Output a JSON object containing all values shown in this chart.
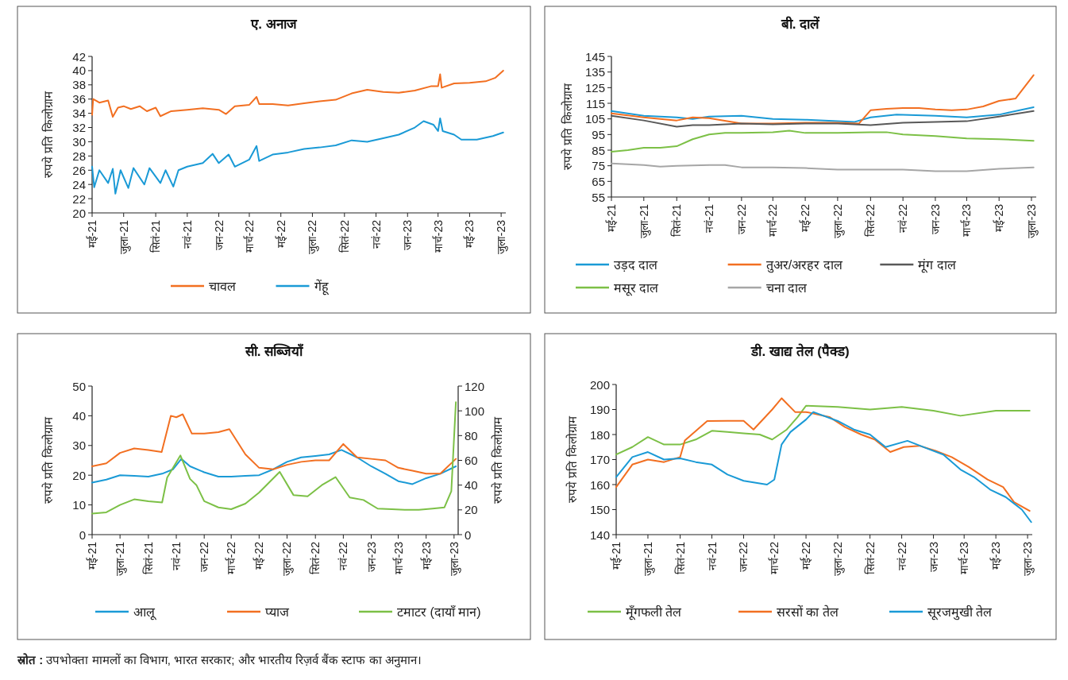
{
  "chart_data": [
    {
      "type": "line",
      "title": "ए. अनाज",
      "ylabel": "रुपये प्रति किलोग्राम",
      "xlim": [
        "2021-05-01",
        "2023-07-10"
      ],
      "ylim": [
        20,
        42
      ],
      "yticks": [
        20,
        22,
        24,
        26,
        28,
        30,
        32,
        34,
        36,
        38,
        40,
        42
      ],
      "xticks": [
        {
          "value": "2021-05-01",
          "label": "मई-21"
        },
        {
          "value": "2021-07-01",
          "label": "जुला-21"
        },
        {
          "value": "2021-09-01",
          "label": "सितं-21"
        },
        {
          "value": "2021-11-01",
          "label": "नवं-21"
        },
        {
          "value": "2022-01-01",
          "label": "जन-22"
        },
        {
          "value": "2022-03-01",
          "label": "मार्च-22"
        },
        {
          "value": "2022-05-01",
          "label": "मई-22"
        },
        {
          "value": "2022-07-01",
          "label": "जुला-22"
        },
        {
          "value": "2022-09-01",
          "label": "सितं-22"
        },
        {
          "value": "2022-11-01",
          "label": "नवं-22"
        },
        {
          "value": "2023-01-01",
          "label": "जन-23"
        },
        {
          "value": "2023-03-01",
          "label": "मार्च-23"
        },
        {
          "value": "2023-05-01",
          "label": "मई-23"
        },
        {
          "value": "2023-07-01",
          "label": "जुला-23"
        }
      ],
      "legend": "bottom",
      "annotations": [
        "स्रोत : उपभोक्ता मामलों का विभाग, भारत सरकार; और भारतीय रिज़र्व बैंक स्टाफ का अनुमान।"
      ],
      "series": [
        {
          "name": "चावल",
          "color": "#f26f21",
          "x": [
            "2021-05-01",
            "2021-05-03",
            "2021-05-15",
            "2021-06-01",
            "2021-06-10",
            "2021-06-20",
            "2021-07-01",
            "2021-07-15",
            "2021-08-01",
            "2021-08-15",
            "2021-09-01",
            "2021-09-10",
            "2021-10-01",
            "2021-11-01",
            "2021-12-01",
            "2022-01-01",
            "2022-01-15",
            "2022-02-01",
            "2022-03-01",
            "2022-03-15",
            "2022-03-20",
            "2022-04-15",
            "2022-05-15",
            "2022-06-15",
            "2022-07-15",
            "2022-08-15",
            "2022-09-15",
            "2022-10-15",
            "2022-11-15",
            "2022-12-15",
            "2023-01-15",
            "2023-02-15",
            "2023-03-01",
            "2023-03-05",
            "2023-03-08",
            "2023-04-01",
            "2023-05-01",
            "2023-06-01",
            "2023-06-20",
            "2023-07-05"
          ],
          "values": [
            33.8,
            36,
            35.5,
            35.8,
            33.5,
            34.8,
            35,
            34.6,
            35,
            34.3,
            34.8,
            33.6,
            34.3,
            34.5,
            34.7,
            34.5,
            33.9,
            35,
            35.2,
            36.3,
            35.3,
            35.3,
            35.1,
            35.4,
            35.7,
            35.9,
            36.8,
            37.3,
            37,
            36.9,
            37.2,
            37.8,
            37.8,
            39.5,
            37.6,
            38.2,
            38.3,
            38.5,
            39,
            40
          ]
        },
        {
          "name": "गेंहू",
          "color": "#1a9ad6",
          "x": [
            "2021-05-01",
            "2021-05-05",
            "2021-05-15",
            "2021-06-01",
            "2021-06-10",
            "2021-06-15",
            "2021-06-25",
            "2021-07-10",
            "2021-07-20",
            "2021-08-10",
            "2021-08-20",
            "2021-09-10",
            "2021-09-20",
            "2021-10-05",
            "2021-10-15",
            "2021-11-01",
            "2021-12-01",
            "2021-12-20",
            "2022-01-01",
            "2022-01-20",
            "2022-02-01",
            "2022-03-01",
            "2022-03-15",
            "2022-03-20",
            "2022-04-15",
            "2022-05-15",
            "2022-06-15",
            "2022-07-15",
            "2022-08-15",
            "2022-09-15",
            "2022-10-15",
            "2022-11-15",
            "2022-12-15",
            "2023-01-15",
            "2023-02-01",
            "2023-02-20",
            "2023-03-01",
            "2023-03-05",
            "2023-03-10",
            "2023-04-01",
            "2023-04-15",
            "2023-05-15",
            "2023-06-15",
            "2023-07-05"
          ],
          "values": [
            26.5,
            23.6,
            26,
            24.2,
            26.2,
            22.7,
            26,
            23.5,
            26.3,
            24,
            26.3,
            24.2,
            26,
            23.7,
            26,
            26.5,
            27,
            28.3,
            27,
            28.2,
            26.5,
            27.5,
            29.4,
            27.3,
            28.2,
            28.5,
            29,
            29.2,
            29.5,
            30.2,
            30,
            30.5,
            31,
            32,
            32.9,
            32.4,
            31.5,
            33.3,
            31.5,
            31,
            30.3,
            30.3,
            30.8,
            31.3
          ]
        }
      ]
    },
    {
      "type": "line",
      "title": "बी. दालें",
      "ylabel": "रुपये प्रति किलोग्राम",
      "xlim": [
        "2021-05-01",
        "2023-07-10"
      ],
      "ylim": [
        55,
        145
      ],
      "yticks": [
        55,
        65,
        75,
        85,
        95,
        105,
        115,
        125,
        135,
        145
      ],
      "xticks": [
        {
          "value": "2021-05-01",
          "label": "मई-21"
        },
        {
          "value": "2021-07-01",
          "label": "जुला-21"
        },
        {
          "value": "2021-09-01",
          "label": "सितं-21"
        },
        {
          "value": "2021-11-01",
          "label": "नवं-21"
        },
        {
          "value": "2022-01-01",
          "label": "जन-22"
        },
        {
          "value": "2022-03-01",
          "label": "मार्च-22"
        },
        {
          "value": "2022-05-01",
          "label": "मई-22"
        },
        {
          "value": "2022-07-01",
          "label": "जुला-22"
        },
        {
          "value": "2022-09-01",
          "label": "सितं-22"
        },
        {
          "value": "2022-11-01",
          "label": "नवं-22"
        },
        {
          "value": "2023-01-01",
          "label": "जन-23"
        },
        {
          "value": "2023-03-01",
          "label": "मार्च-23"
        },
        {
          "value": "2023-05-01",
          "label": "मई-23"
        },
        {
          "value": "2023-07-01",
          "label": "जुला-23"
        }
      ],
      "legend": "bottom",
      "series": [
        {
          "name": "उड़द दाल",
          "color": "#1a9ad6",
          "x": [
            "2021-05-01",
            "2021-07-01",
            "2021-09-01",
            "2021-10-01",
            "2021-11-01",
            "2022-01-01",
            "2022-03-01",
            "2022-05-01",
            "2022-07-01",
            "2022-08-01",
            "2022-09-01",
            "2022-10-20",
            "2023-01-01",
            "2023-03-01",
            "2023-05-01",
            "2023-07-05"
          ],
          "values": [
            110,
            107,
            106,
            105,
            106.5,
            107,
            105,
            104.5,
            103.5,
            103,
            106,
            107.7,
            107,
            106,
            107.7,
            112.5
          ]
        },
        {
          "name": "तुअर/अरहर दाल",
          "color": "#f26f21",
          "x": [
            "2021-05-01",
            "2021-07-01",
            "2021-09-01",
            "2021-10-01",
            "2021-11-01",
            "2022-01-01",
            "2022-03-01",
            "2022-05-01",
            "2022-07-01",
            "2022-08-10",
            "2022-09-01",
            "2022-10-01",
            "2022-11-01",
            "2022-12-01",
            "2023-01-01",
            "2023-02-01",
            "2023-03-01",
            "2023-04-01",
            "2023-05-01",
            "2023-06-01",
            "2023-07-05"
          ],
          "values": [
            108.5,
            106,
            104,
            106,
            105.5,
            102,
            102,
            102.5,
            102.5,
            102,
            110.5,
            111.5,
            112,
            112,
            111,
            110.5,
            111,
            113,
            116.5,
            118,
            133
          ]
        },
        {
          "name": "मूंग दाल",
          "color": "#595959",
          "x": [
            "2021-05-01",
            "2021-07-01",
            "2021-09-01",
            "2021-10-01",
            "2021-11-01",
            "2022-01-01",
            "2022-03-01",
            "2022-05-01",
            "2022-07-01",
            "2022-09-01",
            "2022-11-01",
            "2023-01-01",
            "2023-03-01",
            "2023-05-01",
            "2023-07-05"
          ],
          "values": [
            107,
            104,
            100,
            101,
            101,
            102,
            101.5,
            102,
            102,
            101,
            102.5,
            103,
            103.5,
            106.5,
            110
          ]
        },
        {
          "name": "मसूर दाल",
          "color": "#7cc046",
          "x": [
            "2021-05-01",
            "2021-06-01",
            "2021-07-01",
            "2021-08-01",
            "2021-09-01",
            "2021-10-01",
            "2021-11-01",
            "2021-12-01",
            "2022-01-01",
            "2022-03-01",
            "2022-04-01",
            "2022-05-01",
            "2022-07-01",
            "2022-09-01",
            "2022-10-01",
            "2022-11-01",
            "2023-01-01",
            "2023-03-01",
            "2023-05-01",
            "2023-07-05"
          ],
          "values": [
            84,
            85,
            86.5,
            86.5,
            87.5,
            92,
            95,
            96,
            96,
            96.5,
            97.5,
            96,
            96,
            96.5,
            96.5,
            95,
            94,
            92.5,
            92,
            91
          ]
        },
        {
          "name": "चना दाल",
          "color": "#a6a6a6",
          "x": [
            "2021-05-01",
            "2021-07-01",
            "2021-08-01",
            "2021-09-01",
            "2021-11-01",
            "2021-12-01",
            "2022-01-01",
            "2022-03-01",
            "2022-05-01",
            "2022-07-01",
            "2022-09-01",
            "2022-11-01",
            "2023-01-01",
            "2023-03-01",
            "2023-05-01",
            "2023-07-05"
          ],
          "values": [
            76.5,
            75.5,
            74.5,
            75,
            75.5,
            75.5,
            74,
            74,
            73.5,
            72.5,
            72.5,
            72.5,
            71.5,
            71.5,
            73,
            74
          ]
        }
      ]
    },
    {
      "type": "line",
      "title": "सी. सब्जियाँ",
      "ylabel": "रुपये प्रति किलोग्राम",
      "y2label": "रुपये प्रति किलोग्राम",
      "xlim": [
        "2021-05-01",
        "2023-07-10"
      ],
      "ylim": [
        0,
        50
      ],
      "yticks": [
        0,
        10,
        20,
        30,
        40,
        50
      ],
      "y2lim": [
        0,
        120
      ],
      "y2ticks": [
        0,
        20,
        40,
        60,
        80,
        100,
        120
      ],
      "xticks": [
        {
          "value": "2021-05-01",
          "label": "मई-21"
        },
        {
          "value": "2021-07-01",
          "label": "जुला-21"
        },
        {
          "value": "2021-09-01",
          "label": "सितं-21"
        },
        {
          "value": "2021-11-01",
          "label": "नवं-21"
        },
        {
          "value": "2022-01-01",
          "label": "जन-22"
        },
        {
          "value": "2022-03-01",
          "label": "मार्च-22"
        },
        {
          "value": "2022-05-01",
          "label": "मई-22"
        },
        {
          "value": "2022-07-01",
          "label": "जुला-22"
        },
        {
          "value": "2022-09-01",
          "label": "सितं-22"
        },
        {
          "value": "2022-11-01",
          "label": "नवं-22"
        },
        {
          "value": "2023-01-01",
          "label": "जन-23"
        },
        {
          "value": "2023-03-01",
          "label": "मार्च-23"
        },
        {
          "value": "2023-05-01",
          "label": "मई-23"
        },
        {
          "value": "2023-07-01",
          "label": "जुला-23"
        }
      ],
      "legend": "bottom",
      "series": [
        {
          "name": "आलू",
          "color": "#1a9ad6",
          "x": [
            "2021-05-01",
            "2021-06-01",
            "2021-07-01",
            "2021-08-01",
            "2021-09-01",
            "2021-10-01",
            "2021-10-25",
            "2021-11-12",
            "2021-12-01",
            "2022-01-01",
            "2022-02-01",
            "2022-03-01",
            "2022-04-01",
            "2022-05-01",
            "2022-06-01",
            "2022-07-01",
            "2022-08-01",
            "2022-09-01",
            "2022-10-01",
            "2022-10-28",
            "2022-12-01",
            "2023-01-01",
            "2023-02-01",
            "2023-03-01",
            "2023-04-01",
            "2023-05-01",
            "2023-06-01",
            "2023-07-05"
          ],
          "values": [
            17.5,
            18.5,
            20,
            19.8,
            19.5,
            20.5,
            22,
            25.5,
            23,
            21,
            19.5,
            19.5,
            19.8,
            20,
            22,
            24.5,
            26,
            26.5,
            27,
            28.5,
            26,
            23,
            20.5,
            18,
            17,
            19,
            20.5,
            23
          ]
        },
        {
          "name": "प्याज",
          "color": "#f26f21",
          "x": [
            "2021-05-01",
            "2021-06-01",
            "2021-07-01",
            "2021-08-01",
            "2021-09-01",
            "2021-09-30",
            "2021-10-20",
            "2021-11-01",
            "2021-11-15",
            "2021-12-05",
            "2022-01-01",
            "2022-02-01",
            "2022-02-25",
            "2022-04-01",
            "2022-05-01",
            "2022-06-01",
            "2022-07-01",
            "2022-08-01",
            "2022-09-01",
            "2022-10-01",
            "2022-11-01",
            "2022-12-01",
            "2023-01-01",
            "2023-02-01",
            "2023-03-01",
            "2023-04-01",
            "2023-05-01",
            "2023-06-01",
            "2023-07-05"
          ],
          "values": [
            23,
            24,
            27.5,
            29,
            28.5,
            27.8,
            40,
            39.5,
            40.5,
            34,
            34,
            34.5,
            35.5,
            27,
            22.5,
            22,
            23.5,
            24.5,
            25,
            25,
            30.5,
            26,
            25.5,
            25,
            22.5,
            21.5,
            20.5,
            20.5,
            25.5
          ]
        },
        {
          "name": "टमाटर (दायाँ मान)",
          "color": "#7cc046",
          "axis": "y2",
          "x": [
            "2021-05-01",
            "2021-06-01",
            "2021-07-01",
            "2021-08-01",
            "2021-09-01",
            "2021-10-01",
            "2021-10-12",
            "2021-11-10",
            "2021-12-01",
            "2021-12-15",
            "2022-01-01",
            "2022-02-01",
            "2022-03-01",
            "2022-04-01",
            "2022-05-01",
            "2022-06-15",
            "2022-07-15",
            "2022-08-15",
            "2022-09-15",
            "2022-10-15",
            "2022-11-15",
            "2022-12-15",
            "2023-01-15",
            "2023-02-15",
            "2023-03-15",
            "2023-04-15",
            "2023-05-15",
            "2023-06-10",
            "2023-06-25",
            "2023-07-05"
          ],
          "values": [
            17,
            18,
            24,
            28.5,
            27,
            26,
            46,
            64,
            45,
            40,
            27,
            22,
            20.5,
            25,
            34,
            50.7,
            32,
            31,
            40,
            46.5,
            30,
            28,
            21,
            20.5,
            20,
            20,
            21,
            22,
            35,
            107
          ]
        }
      ]
    },
    {
      "type": "line",
      "title": "डी. खाद्य तेल (पैक्ड)",
      "ylabel": "रुपये प्रति किलोग्राम",
      "xlim": [
        "2021-05-01",
        "2023-07-10"
      ],
      "ylim": [
        140,
        200
      ],
      "yticks": [
        140,
        150,
        160,
        170,
        180,
        190,
        200
      ],
      "xticks": [
        {
          "value": "2021-05-01",
          "label": "मई-21"
        },
        {
          "value": "2021-07-01",
          "label": "जुला-21"
        },
        {
          "value": "2021-09-01",
          "label": "सितं-21"
        },
        {
          "value": "2021-11-01",
          "label": "नवं-21"
        },
        {
          "value": "2022-01-01",
          "label": "जन-22"
        },
        {
          "value": "2022-03-01",
          "label": "मार्च-22"
        },
        {
          "value": "2022-05-01",
          "label": "मई-22"
        },
        {
          "value": "2022-07-01",
          "label": "जुला-22"
        },
        {
          "value": "2022-09-01",
          "label": "सितं-22"
        },
        {
          "value": "2022-11-01",
          "label": "नवं-22"
        },
        {
          "value": "2023-01-01",
          "label": "जन-23"
        },
        {
          "value": "2023-03-01",
          "label": "मार्च-23"
        },
        {
          "value": "2023-05-01",
          "label": "मई-23"
        },
        {
          "value": "2023-07-01",
          "label": "जुला-23"
        }
      ],
      "legend": "bottom",
      "series": [
        {
          "name": "मूँगफली तेल",
          "color": "#7cc046",
          "x": [
            "2021-05-01",
            "2021-06-01",
            "2021-07-01",
            "2021-08-01",
            "2021-09-01",
            "2021-10-01",
            "2021-11-01",
            "2021-12-01",
            "2022-01-01",
            "2022-02-01",
            "2022-02-25",
            "2022-03-25",
            "2022-04-15",
            "2022-05-01",
            "2022-07-01",
            "2022-09-01",
            "2022-11-01",
            "2023-01-01",
            "2023-02-22",
            "2023-05-01",
            "2023-07-05"
          ],
          "values": [
            172,
            175,
            179,
            176,
            176,
            178,
            181.5,
            181,
            180.5,
            180,
            178,
            182,
            187,
            191.5,
            191,
            190,
            191,
            189.5,
            187.5,
            189.5,
            189.5
          ]
        },
        {
          "name": "सरसों का तेल",
          "color": "#f26f21",
          "x": [
            "2021-05-01",
            "2021-06-01",
            "2021-07-01",
            "2021-08-01",
            "2021-09-01",
            "2021-09-10",
            "2021-10-23",
            "2021-12-01",
            "2022-01-01",
            "2022-01-20",
            "2022-02-25",
            "2022-03-15",
            "2022-04-10",
            "2022-05-01",
            "2022-06-15",
            "2022-07-15",
            "2022-08-15",
            "2022-09-10",
            "2022-10-10",
            "2022-11-05",
            "2022-12-05",
            "2023-01-05",
            "2023-02-05",
            "2023-03-10",
            "2023-04-15",
            "2023-05-15",
            "2023-06-05",
            "2023-07-05"
          ],
          "values": [
            159,
            168,
            170,
            169,
            171,
            177.6,
            185.4,
            185.5,
            185.5,
            182,
            190,
            194.5,
            189,
            189,
            187,
            183,
            180,
            178,
            173,
            175,
            175.5,
            173.5,
            171,
            167,
            162,
            159,
            153,
            149.5
          ]
        },
        {
          "name": "सूरजमुखी तेल",
          "color": "#1a9ad6",
          "x": [
            "2021-05-01",
            "2021-06-01",
            "2021-07-01",
            "2021-08-01",
            "2021-09-01",
            "2021-10-01",
            "2021-11-01",
            "2021-12-01",
            "2022-01-01",
            "2022-02-15",
            "2022-03-01",
            "2022-03-15",
            "2022-04-01",
            "2022-05-01",
            "2022-05-15",
            "2022-07-01",
            "2022-08-01",
            "2022-09-01",
            "2022-10-01",
            "2022-11-12",
            "2022-12-25",
            "2023-01-20",
            "2023-02-22",
            "2023-03-20",
            "2023-04-20",
            "2023-05-20",
            "2023-06-20",
            "2023-07-08"
          ],
          "values": [
            163,
            171,
            173,
            170,
            170.5,
            169,
            168,
            164,
            161.5,
            160,
            162,
            176,
            181,
            186,
            189,
            185.4,
            182,
            180,
            175,
            177.5,
            174,
            172,
            166,
            163,
            158,
            155,
            150,
            145
          ]
        }
      ]
    }
  ]
}
